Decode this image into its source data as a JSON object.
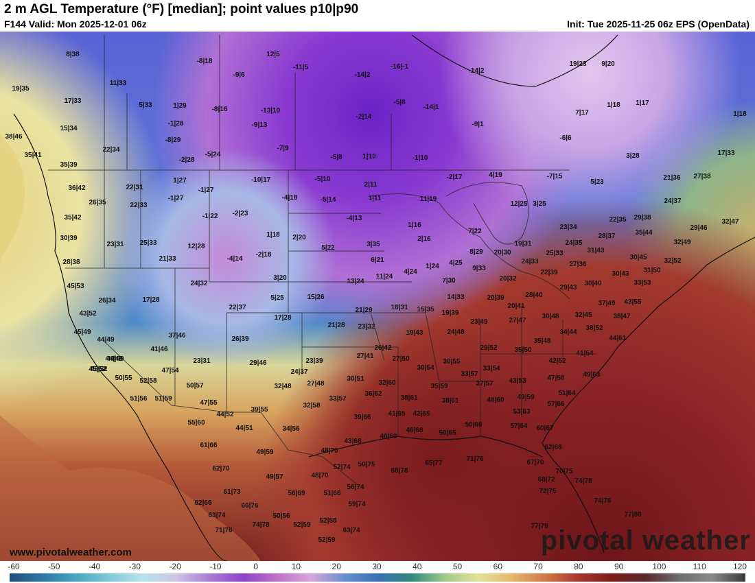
{
  "header": {
    "title": "2 m AGL Temperature (°F) [median]; point values p10|p90",
    "valid": "F144 Valid: Mon 2025-12-01 06z",
    "init": "Init: Tue 2025-11-25 06z EPS (OpenData)"
  },
  "footer": {
    "website": "www.pivotalweather.com",
    "brand": "pivotal weather"
  },
  "colorbar": {
    "ticks": [
      "-60",
      "-50",
      "-40",
      "-30",
      "-20",
      "-10",
      "0",
      "10",
      "20",
      "30",
      "40",
      "50",
      "60",
      "70",
      "80",
      "90",
      "100",
      "110",
      "120"
    ],
    "colors": [
      "#1e4f7a",
      "#2f78a8",
      "#49a6c2",
      "#7fcad6",
      "#b9e3ea",
      "#cfc3e6",
      "#a87ad4",
      "#8e44c9",
      "#c070c8",
      "#d7a6dc",
      "#6a8fd0",
      "#3a6fb6",
      "#2e8a7a",
      "#9ec98a",
      "#e3e29a",
      "#e6b86e",
      "#d07a45",
      "#a8382f",
      "#7a1d1a",
      "#5a2a2a",
      "#6c6c6c",
      "#8a8a8a",
      "#3a3a3a"
    ]
  },
  "point_values": [
    "8|38",
    "19|35",
    "17|33",
    "15|34",
    "38|46",
    "35|41",
    "35|39",
    "36|42",
    "26|35",
    "35|42",
    "30|39",
    "28|38",
    "45|53",
    "43|52",
    "45|49",
    "44|49",
    "44|49",
    "45|52",
    "11|33",
    "5|33",
    "1|29",
    "-1|28",
    "-8|29",
    "-2|28",
    "22|34",
    "22|31",
    "22|33",
    "1|27",
    "-1|27",
    "-1|22",
    "23|31",
    "25|33",
    "21|33",
    "12|28",
    "24|32",
    "26|34",
    "17|28",
    "-8|18",
    "12|5",
    "-11|5",
    "-9|6",
    "-8|16",
    "-13|10",
    "-9|13",
    "-7|9",
    "-5|24",
    "-5|8",
    "-5|10",
    "-4|18",
    "-10|17",
    "-5|14",
    "-2|23",
    "-1|27",
    "-16|-1",
    "-14|2",
    "-14|2",
    "-2|14",
    "1|10",
    "-5|8",
    "-14|1",
    "-9|1",
    "-1|10",
    "2|11",
    "1|11",
    "-4|13",
    "-2|17",
    "4|19",
    "-7|15",
    "11|19",
    "19|23",
    "9|20",
    "7|17",
    "1|18",
    "1|17",
    "1|18",
    "-6|6",
    "3|28",
    "5|23",
    "21|36",
    "27|38",
    "17|33",
    "24|37",
    "22|35",
    "29|38",
    "29|46",
    "32|47",
    "1|18",
    "2|20",
    "-2|18",
    "-4|14",
    "5|22",
    "3|35",
    "6|21",
    "1|16",
    "2|16",
    "7|22",
    "3|25",
    "12|25",
    "1|24",
    "4|25",
    "4|24",
    "11|24",
    "13|24",
    "23|34",
    "24|35",
    "31|43",
    "28|37",
    "35|44",
    "32|49",
    "30|45",
    "32|52",
    "33|53",
    "31|50",
    "27|36",
    "25|33",
    "24|33",
    "19|31",
    "20|30",
    "8|29",
    "9|33",
    "20|32",
    "22|39",
    "3|20",
    "5|25",
    "15|26",
    "7|30",
    "14|33",
    "21|29",
    "18|31",
    "15|35",
    "19|39",
    "20|39",
    "28|40",
    "20|41",
    "30|40",
    "30|43",
    "29|43",
    "37|49",
    "38|47",
    "43|55",
    "22|37",
    "17|28",
    "21|28",
    "23|32",
    "19|43",
    "24|48",
    "23|49",
    "27|47",
    "30|48",
    "32|45",
    "34|44",
    "38|52",
    "44|61",
    "35|48",
    "35|50",
    "37|46",
    "41|46",
    "23|31",
    "26|39",
    "29|46",
    "23|39",
    "24|37",
    "27|48",
    "26|42",
    "27|41",
    "27|50",
    "29|52",
    "30|54",
    "30|55",
    "41|54",
    "42|52",
    "47|58",
    "49|63",
    "44|49",
    "45|52",
    "50|55",
    "52|58",
    "51|56",
    "51|59",
    "47|54",
    "50|57",
    "47|55",
    "44|52",
    "39|55",
    "32|48",
    "30|51",
    "32|58",
    "33|57",
    "36|62",
    "32|60",
    "38|61",
    "35|59",
    "33|57",
    "33|54",
    "37|57",
    "43|53",
    "48|60",
    "49|59",
    "51|64",
    "57|66",
    "53|63",
    "38|61",
    "39|66",
    "41|65",
    "42|65",
    "46|68",
    "43|68",
    "46|60",
    "50|65",
    "50|66",
    "55|60",
    "61|66",
    "62|70",
    "61|73",
    "62|66",
    "63|74",
    "71|76",
    "66|76",
    "74|78",
    "50|56",
    "52|59",
    "52|58",
    "52|59",
    "49|57",
    "56|69",
    "51|66",
    "56|74",
    "59|74",
    "63|74",
    "44|51",
    "34|56",
    "49|59",
    "48|70",
    "48|70",
    "52|74",
    "50|75",
    "68|78",
    "65|77",
    "71|76",
    "57|64",
    "60|67",
    "62|68",
    "67|70",
    "68|72",
    "70|75",
    "74|78",
    "72|75",
    "74|76",
    "77|80",
    "77|79"
  ]
}
